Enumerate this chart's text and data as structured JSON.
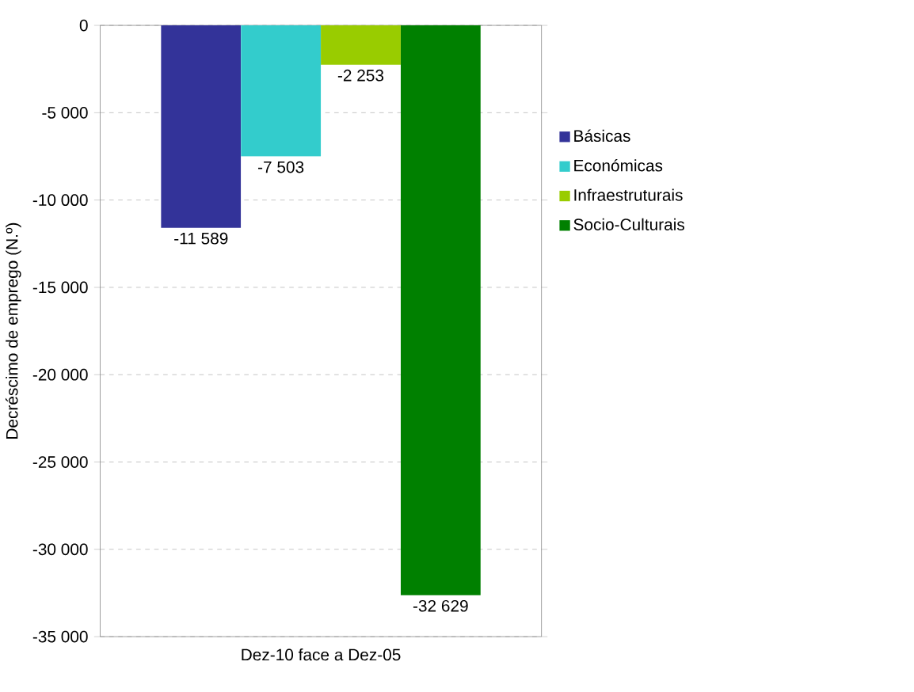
{
  "chart_data": {
    "type": "bar",
    "ylabel": "Decréscimo de emprego (N.º)",
    "categories": [
      "Dez-10 face a Dez-05"
    ],
    "series": [
      {
        "name": "Básicas",
        "color": "#333399",
        "values": [
          -11589
        ],
        "value_labels": [
          "-11 589"
        ]
      },
      {
        "name": "Económicas",
        "color": "#33cccc",
        "values": [
          -7503
        ],
        "value_labels": [
          "-7 503"
        ]
      },
      {
        "name": "Infraestruturais",
        "color": "#99cc00",
        "values": [
          -2253
        ],
        "value_labels": [
          "-2 253"
        ]
      },
      {
        "name": "Socio-Culturais",
        "color": "#008000",
        "values": [
          -32629
        ],
        "value_labels": [
          "-32 629"
        ]
      }
    ],
    "ylim": [
      -35000,
      0
    ],
    "yticks": [
      {
        "value": -35000,
        "label": "-35 000"
      },
      {
        "value": -30000,
        "label": "-30 000"
      },
      {
        "value": -25000,
        "label": "-25 000"
      },
      {
        "value": -20000,
        "label": "-20 000"
      },
      {
        "value": -15000,
        "label": "-15 000"
      },
      {
        "value": -10000,
        "label": "-10 000"
      },
      {
        "value": -5000,
        "label": "-5 000"
      },
      0
    ],
    "grid": "y",
    "legend": "right"
  }
}
